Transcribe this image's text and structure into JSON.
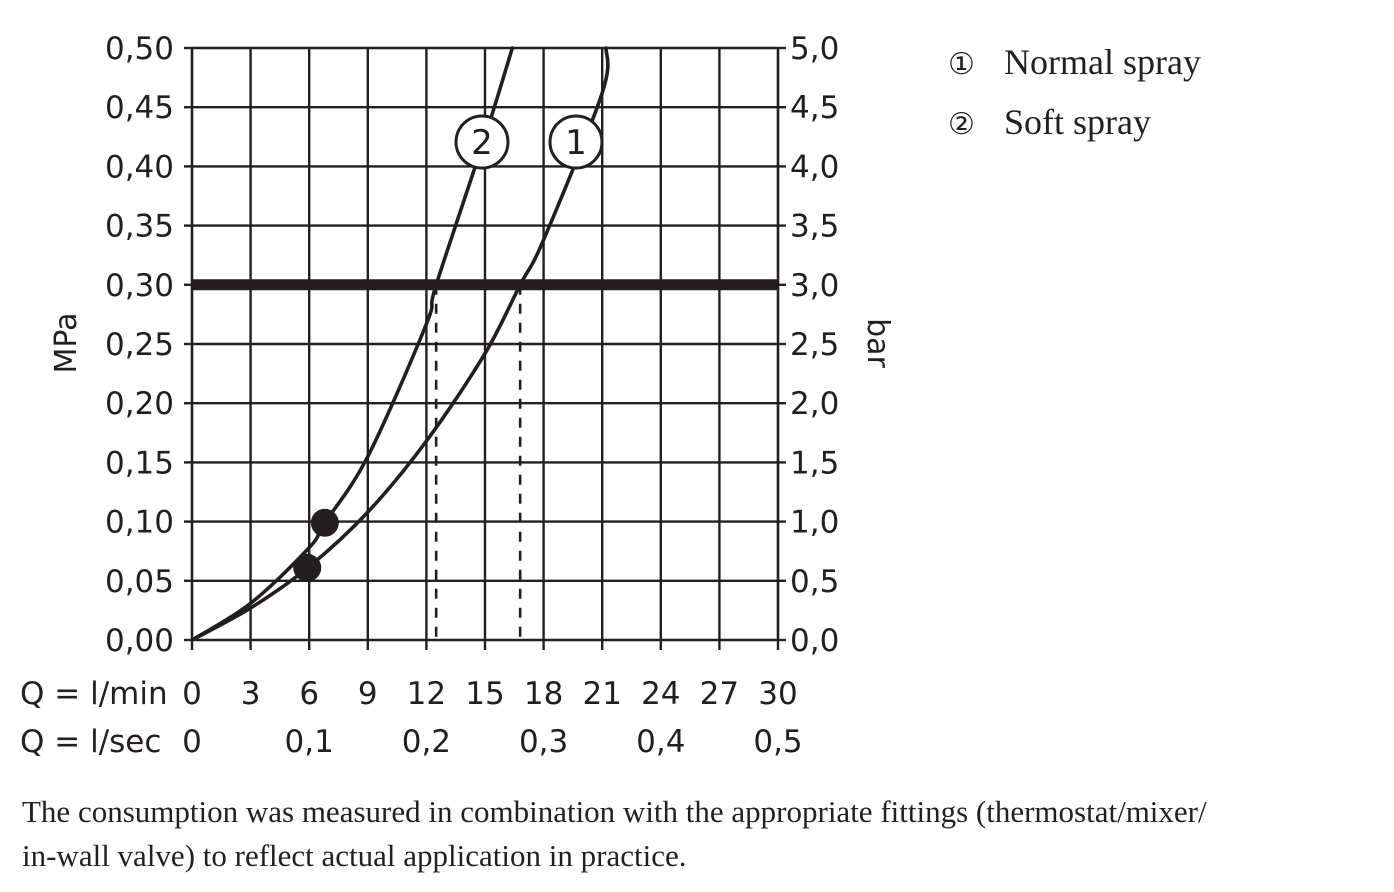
{
  "chart_data": {
    "type": "line",
    "ylabel_left": "MPa",
    "ylabel_right": "bar",
    "x_axis_rows": [
      {
        "label": "Q = l/min",
        "unit": "l/min",
        "ticks": [
          "0",
          "3",
          "6",
          "9",
          "12",
          "15",
          "18",
          "21",
          "24",
          "27",
          "30"
        ]
      },
      {
        "label": "Q = l/sec",
        "unit": "l/sec",
        "ticks": [
          "0",
          "0,1",
          "0,2",
          "0,3",
          "0,4",
          "0,5"
        ]
      }
    ],
    "xlim": [
      0,
      30
    ],
    "ylim": [
      0,
      0.5
    ],
    "left_ticks": [
      "0,00",
      "0,05",
      "0,10",
      "0,15",
      "0,20",
      "0,25",
      "0,30",
      "0,35",
      "0,40",
      "0,45",
      "0,50"
    ],
    "right_ticks": [
      "0,0",
      "0,5",
      "1,0",
      "1,5",
      "2,0",
      "2,5",
      "3,0",
      "3,5",
      "4,0",
      "4,5",
      "5,0"
    ],
    "grid": true,
    "reference_line": {
      "y": 0.3
    },
    "series": [
      {
        "name": "Normal spray",
        "marker": "1",
        "x": [
          0,
          3,
          6,
          9,
          12,
          15,
          16.8,
          18,
          21,
          21.2
        ],
        "y": [
          0,
          0.027,
          0.062,
          0.108,
          0.168,
          0.242,
          0.3,
          0.338,
          0.462,
          0.5
        ],
        "min_point": {
          "x": 5.9,
          "y": 0.061
        },
        "crossing_x": 16.8
      },
      {
        "name": "Soft spray",
        "marker": "2",
        "x": [
          0,
          3,
          6,
          6.8,
          9,
          12,
          12.5,
          15,
          16.4
        ],
        "y": [
          0,
          0.031,
          0.078,
          0.099,
          0.155,
          0.267,
          0.3,
          0.425,
          0.5
        ],
        "min_point": {
          "x": 6.8,
          "y": 0.099
        },
        "crossing_x": 12.5
      }
    ],
    "legend": {
      "placement": "top-right",
      "items": [
        {
          "symbol": "①",
          "label": "Normal spray"
        },
        {
          "symbol": "②",
          "label": "Soft spray"
        }
      ]
    }
  },
  "footnote": {
    "line1": "The consumption was measured in combination with the appropriate fittings (thermostat/mixer/",
    "line2": "in-wall valve) to reflect actual application in practice."
  }
}
